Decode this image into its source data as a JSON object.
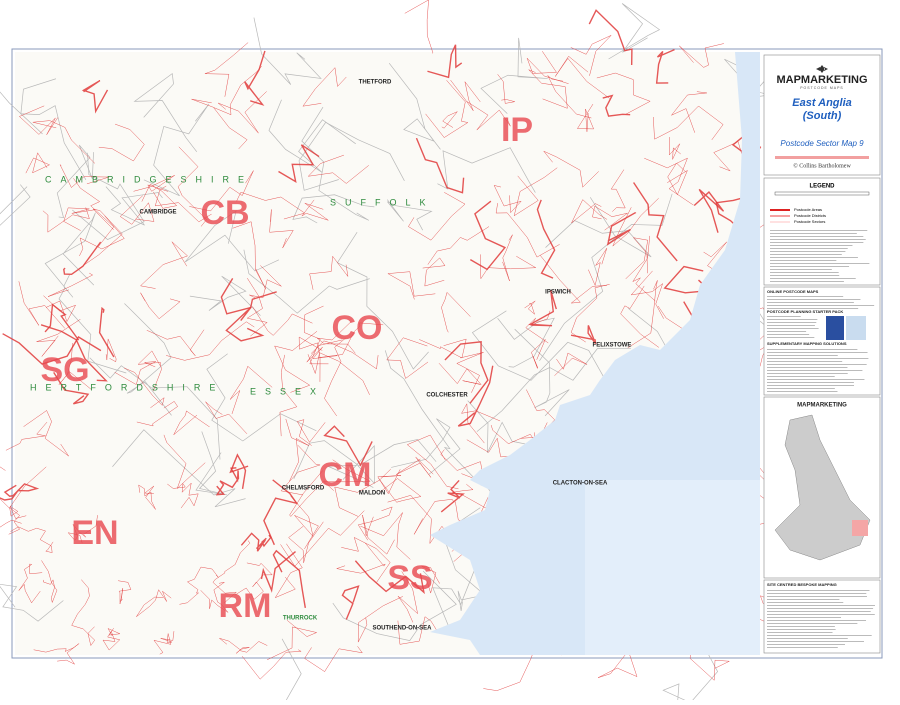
{
  "header": {
    "brand": "MAPMARKETING",
    "tagline": "POSTCODE MAPS",
    "title_line1": "East Anglia",
    "title_line2": "(South)",
    "subtitle": "Postcode Sector Map 9",
    "copyright": "© Collins Bartholomew"
  },
  "legend": {
    "title": "LEGEND",
    "items": [
      "Postcode Areas",
      "Postcode Districts",
      "Postcode Sectors"
    ]
  },
  "map": {
    "areas": [
      "IP",
      "CB",
      "CO",
      "SG",
      "CM",
      "SS",
      "RM",
      "EN"
    ],
    "towns": [
      "CAMBRIDGE",
      "IPSWICH",
      "COLCHESTER",
      "CHELMSFORD",
      "CLACTON-ON-SEA",
      "SOUTHEND-ON-SEA",
      "THURROCK",
      "MALDON",
      "THETFORD",
      "FELIXSTOWE"
    ],
    "counties": [
      "CAMBRIDGESHIRE",
      "SUFFOLK",
      "HERTFORDSHIRE",
      "ESSEX"
    ]
  },
  "panels": [
    "ONLINE POSTCODE MAPS",
    "POSTCODE PLANNING STARTER PACK",
    "SUPPLEMENTARY MAPPING SOLUTIONS",
    "SITE CENTRED BESPOKE MAPPING"
  ]
}
